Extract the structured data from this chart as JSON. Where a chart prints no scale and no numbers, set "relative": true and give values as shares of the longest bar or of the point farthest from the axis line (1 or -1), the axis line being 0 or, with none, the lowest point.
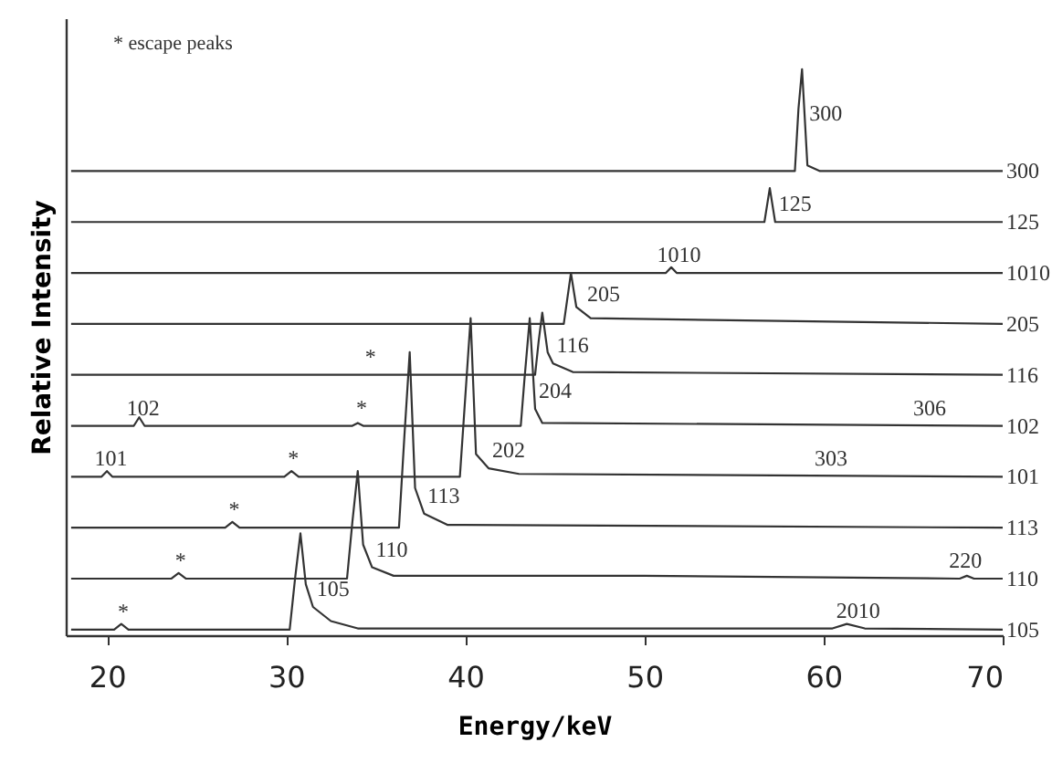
{
  "chart_data": {
    "type": "line",
    "relative": true,
    "xlabel": "Energy/keV",
    "ylabel": "Relative Intensity",
    "xlim": [
      17.7,
      70
    ],
    "xticks": [
      20,
      30,
      40,
      50,
      60,
      70
    ],
    "grid": false,
    "marker": "none",
    "line_style": "solid",
    "series": [
      {
        "name": "105",
        "color": "#333333",
        "x": [
          18,
          20.4,
          20.8,
          21.2,
          30.2,
          30.5,
          30.8,
          31.1,
          31.5,
          32.5,
          34,
          60.5,
          61.3,
          62.3,
          70
        ],
        "values": [
          0.01,
          0.01,
          0.02,
          0.01,
          0.01,
          0.1,
          0.18,
          0.09,
          0.05,
          0.025,
          0.012,
          0.012,
          0.02,
          0.012,
          0.01
        ]
      },
      {
        "name": "110",
        "color": "#333333",
        "x": [
          18,
          23.6,
          24,
          24.4,
          33.4,
          33.7,
          34,
          34.3,
          34.8,
          36,
          50,
          67.6,
          68,
          68.4,
          70
        ],
        "values": [
          0.1,
          0.1,
          0.11,
          0.1,
          0.1,
          0.2,
          0.29,
          0.16,
          0.12,
          0.105,
          0.105,
          0.1,
          0.105,
          0.1,
          0.1
        ]
      },
      {
        "name": "113",
        "color": "#333333",
        "x": [
          18,
          26.6,
          27,
          27.4,
          36.3,
          36.6,
          36.9,
          37.2,
          37.7,
          39,
          70
        ],
        "values": [
          0.19,
          0.19,
          0.2,
          0.19,
          0.19,
          0.35,
          0.5,
          0.26,
          0.215,
          0.195,
          0.19
        ]
      },
      {
        "name": "101",
        "color": "#333333",
        "x": [
          18,
          19.7,
          20,
          20.3,
          29.9,
          30.3,
          30.7,
          39.7,
          40,
          40.3,
          40.6,
          41.3,
          43,
          70
        ],
        "values": [
          0.28,
          0.28,
          0.29,
          0.28,
          0.28,
          0.29,
          0.28,
          0.28,
          0.42,
          0.56,
          0.32,
          0.295,
          0.285,
          0.28
        ]
      },
      {
        "name": "102",
        "color": "#333333",
        "x": [
          18,
          21.5,
          21.8,
          22.1,
          33.7,
          34,
          34.3,
          43.1,
          43.3,
          43.6,
          43.9,
          44.3,
          70
        ],
        "values": [
          0.37,
          0.37,
          0.385,
          0.37,
          0.37,
          0.375,
          0.37,
          0.37,
          0.45,
          0.56,
          0.4,
          0.375,
          0.37
        ]
      },
      {
        "name": "116",
        "color": "#333333",
        "x": [
          18,
          43.9,
          44.1,
          44.3,
          44.6,
          44.9,
          46,
          70
        ],
        "values": [
          0.46,
          0.46,
          0.52,
          0.57,
          0.5,
          0.48,
          0.465,
          0.46
        ]
      },
      {
        "name": "205",
        "color": "#333333",
        "x": [
          18,
          45.5,
          45.9,
          46.2,
          47,
          70
        ],
        "values": [
          0.55,
          0.55,
          0.64,
          0.58,
          0.56,
          0.55
        ]
      },
      {
        "name": "1010",
        "color": "#333333",
        "x": [
          18,
          51.2,
          51.5,
          51.8,
          70
        ],
        "values": [
          0.64,
          0.64,
          0.65,
          0.64,
          0.64
        ]
      },
      {
        "name": "125",
        "color": "#333333",
        "x": [
          18,
          56.7,
          57,
          57.3,
          70
        ],
        "values": [
          0.73,
          0.73,
          0.79,
          0.73,
          0.73
        ]
      },
      {
        "name": "300",
        "color": "#333333",
        "x": [
          18,
          58.4,
          58.6,
          58.8,
          59.1,
          59.8,
          70
        ],
        "values": [
          0.82,
          0.82,
          0.93,
          1.0,
          0.83,
          0.82,
          0.82
        ]
      }
    ],
    "annotations": [
      "* escape peaks",
      {
        "text": "300",
        "x": 59.0,
        "y": 0.89
      },
      {
        "text": "125",
        "x": 57.3,
        "y": 0.73
      },
      {
        "text": "1010",
        "x": 50.5,
        "y": 0.64
      },
      {
        "text": "205",
        "x": 46.6,
        "y": 0.57
      },
      {
        "text": "116",
        "x": 44.9,
        "y": 0.48
      },
      {
        "text": "204",
        "x": 43.9,
        "y": 0.4
      },
      {
        "text": "306",
        "x": 64.8,
        "y": 0.37
      },
      {
        "text": "202",
        "x": 41.3,
        "y": 0.295
      },
      {
        "text": "303",
        "x": 59.3,
        "y": 0.28
      },
      {
        "text": "113",
        "x": 37.7,
        "y": 0.215
      },
      {
        "text": "110",
        "x": 34.8,
        "y": 0.12
      },
      {
        "text": "105",
        "x": 31.5,
        "y": 0.05
      },
      {
        "text": "2010",
        "x": 60.5,
        "y": 0.012
      },
      {
        "text": "220",
        "x": 66.8,
        "y": 0.1
      },
      {
        "text": "102",
        "x": 20.9,
        "y": 0.37
      },
      {
        "text": "101",
        "x": 19.1,
        "y": 0.28
      },
      {
        "text": "*",
        "x": 20.4,
        "y": 0.01
      },
      {
        "text": "*",
        "x": 23.6,
        "y": 0.1
      },
      {
        "text": "*",
        "x": 26.6,
        "y": 0.19
      },
      {
        "text": "*",
        "x": 29.9,
        "y": 0.28
      },
      {
        "text": "*",
        "x": 33.7,
        "y": 0.37
      },
      {
        "text": "*",
        "x": 34.2,
        "y": 0.46
      }
    ]
  }
}
